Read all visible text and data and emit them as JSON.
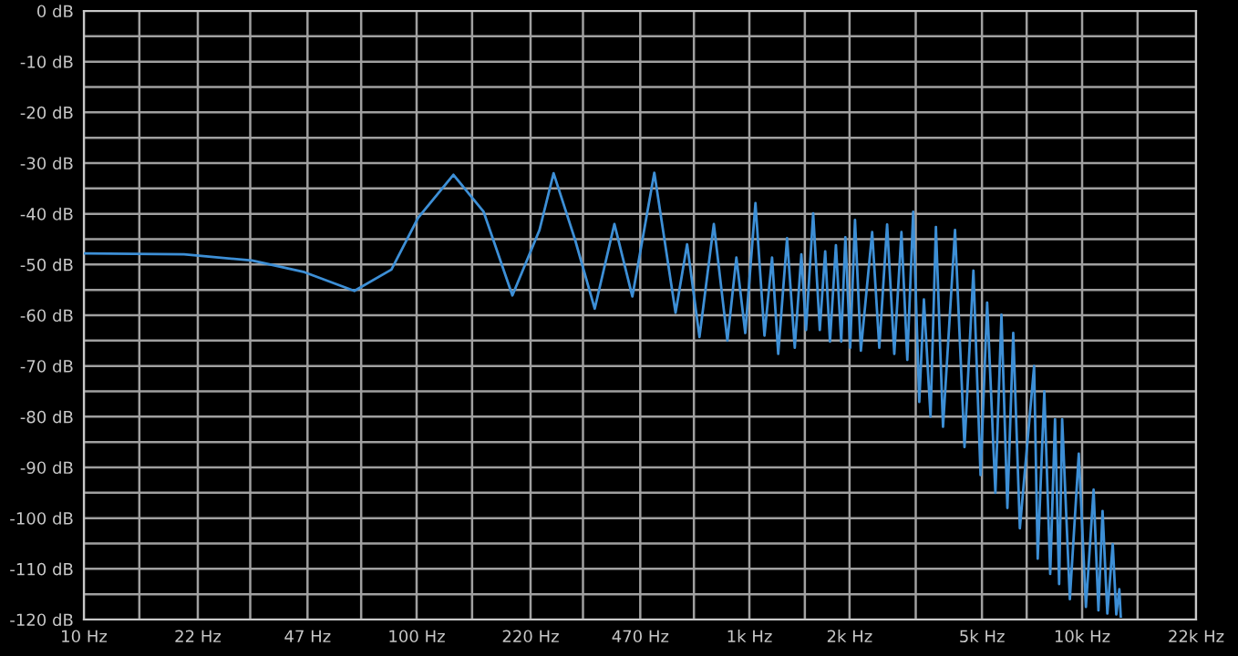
{
  "chart_data": {
    "type": "line",
    "x": [
      10,
      20,
      32,
      46,
      65,
      84,
      101,
      129,
      159,
      194,
      234,
      258,
      299,
      343,
      393,
      445,
      518,
      600,
      650,
      708,
      782,
      859,
      914,
      972,
      1043,
      1110,
      1170,
      1221,
      1298,
      1369,
      1433,
      1480,
      1555,
      1628,
      1690,
      1747,
      1820,
      1888,
      1943,
      2009,
      2077,
      2163,
      2339,
      2457,
      2594,
      2726,
      2864,
      2983,
      3107,
      3240,
      3346,
      3503,
      3636,
      3819,
      4150,
      4431,
      4713,
      4952,
      5183,
      5487,
      5722,
      5962,
      6209,
      6499,
      7174,
      7354,
      7698,
      8019,
      8291,
      8529,
      8710,
      9186,
      9772,
      10266,
      10826,
      11194,
      11519,
      11907,
      12359,
      12667,
      12935,
      13064
    ],
    "series": [
      {
        "color": "#3d8fd6",
        "values": [
          -47.8,
          -48.0,
          -49.2,
          -51.5,
          -55.2,
          -51.0,
          -40.8,
          -32.3,
          -39.6,
          -56.1,
          -43.2,
          -32.0,
          -45.0,
          -58.7,
          -42.0,
          -56.3,
          -31.9,
          -59.5,
          -46.0,
          -64.3,
          -42.0,
          -65.0,
          -48.6,
          -63.5,
          -37.9,
          -64.0,
          -48.6,
          -67.6,
          -44.8,
          -66.4,
          -48.0,
          -62.9,
          -39.9,
          -62.9,
          -47.4,
          -65.2,
          -46.2,
          -65.2,
          -44.6,
          -66.4,
          -41.2,
          -67.0,
          -43.6,
          -66.4,
          -42.1,
          -67.6,
          -43.6,
          -68.8,
          -39.6,
          -77.1,
          -56.9,
          -80.0,
          -42.6,
          -82.0,
          -43.2,
          -86.0,
          -51.2,
          -91.5,
          -57.5,
          -95.0,
          -59.9,
          -98.0,
          -63.5,
          -102.0,
          -70.0,
          -108.0,
          -75.0,
          -111.0,
          -80.5,
          -113.0,
          -80.5,
          -116.0,
          -87.3,
          -117.5,
          -94.4,
          -118.2,
          -98.6,
          -118.8,
          -105.1,
          -119.0,
          -114.0,
          -119.4
        ]
      }
    ],
    "log": "x",
    "xlim": [
      10,
      22000
    ],
    "xticks": [
      {
        "value": 10,
        "label": "10 Hz"
      },
      {
        "value": 14.68,
        "label": null
      },
      {
        "value": 22,
        "label": "22 Hz"
      },
      {
        "value": 31.62,
        "label": null
      },
      {
        "value": 47,
        "label": "47 Hz"
      },
      {
        "value": 68.13,
        "label": null
      },
      {
        "value": 100,
        "label": "100 Hz"
      },
      {
        "value": 146.8,
        "label": null
      },
      {
        "value": 220,
        "label": "220 Hz"
      },
      {
        "value": 316.2,
        "label": null
      },
      {
        "value": 470,
        "label": "470 Hz"
      },
      {
        "value": 681.3,
        "label": null
      },
      {
        "value": 1000,
        "label": "1k Hz"
      },
      {
        "value": 1468,
        "label": null
      },
      {
        "value": 2000,
        "label": "2k Hz"
      },
      {
        "value": 3162,
        "label": null
      },
      {
        "value": 5000,
        "label": "5k Hz"
      },
      {
        "value": 6813,
        "label": null
      },
      {
        "value": 10000,
        "label": "10k Hz"
      },
      {
        "value": 14678,
        "label": null
      },
      {
        "value": 22000,
        "label": "22k Hz"
      }
    ],
    "ylim": [
      -120,
      0
    ],
    "yticks": [
      {
        "value": 0,
        "label": "0 dB"
      },
      {
        "value": -5,
        "label": null
      },
      {
        "value": -10,
        "label": "-10 dB"
      },
      {
        "value": -15,
        "label": null
      },
      {
        "value": -20,
        "label": "-20 dB"
      },
      {
        "value": -25,
        "label": null
      },
      {
        "value": -30,
        "label": "-30 dB"
      },
      {
        "value": -35,
        "label": null
      },
      {
        "value": -40,
        "label": "-40 dB"
      },
      {
        "value": -45,
        "label": null
      },
      {
        "value": -50,
        "label": "-50 dB"
      },
      {
        "value": -55,
        "label": null
      },
      {
        "value": -60,
        "label": "-60 dB"
      },
      {
        "value": -65,
        "label": null
      },
      {
        "value": -70,
        "label": "-70 dB"
      },
      {
        "value": -75,
        "label": null
      },
      {
        "value": -80,
        "label": "-80 dB"
      },
      {
        "value": -85,
        "label": null
      },
      {
        "value": -90,
        "label": "-90 dB"
      },
      {
        "value": -95,
        "label": null
      },
      {
        "value": -100,
        "label": "-100 dB"
      },
      {
        "value": -105,
        "label": null
      },
      {
        "value": -110,
        "label": "-110 dB"
      },
      {
        "value": -115,
        "label": null
      },
      {
        "value": -120,
        "label": "-120 dB"
      }
    ],
    "grid": true,
    "line_style": "solid"
  }
}
